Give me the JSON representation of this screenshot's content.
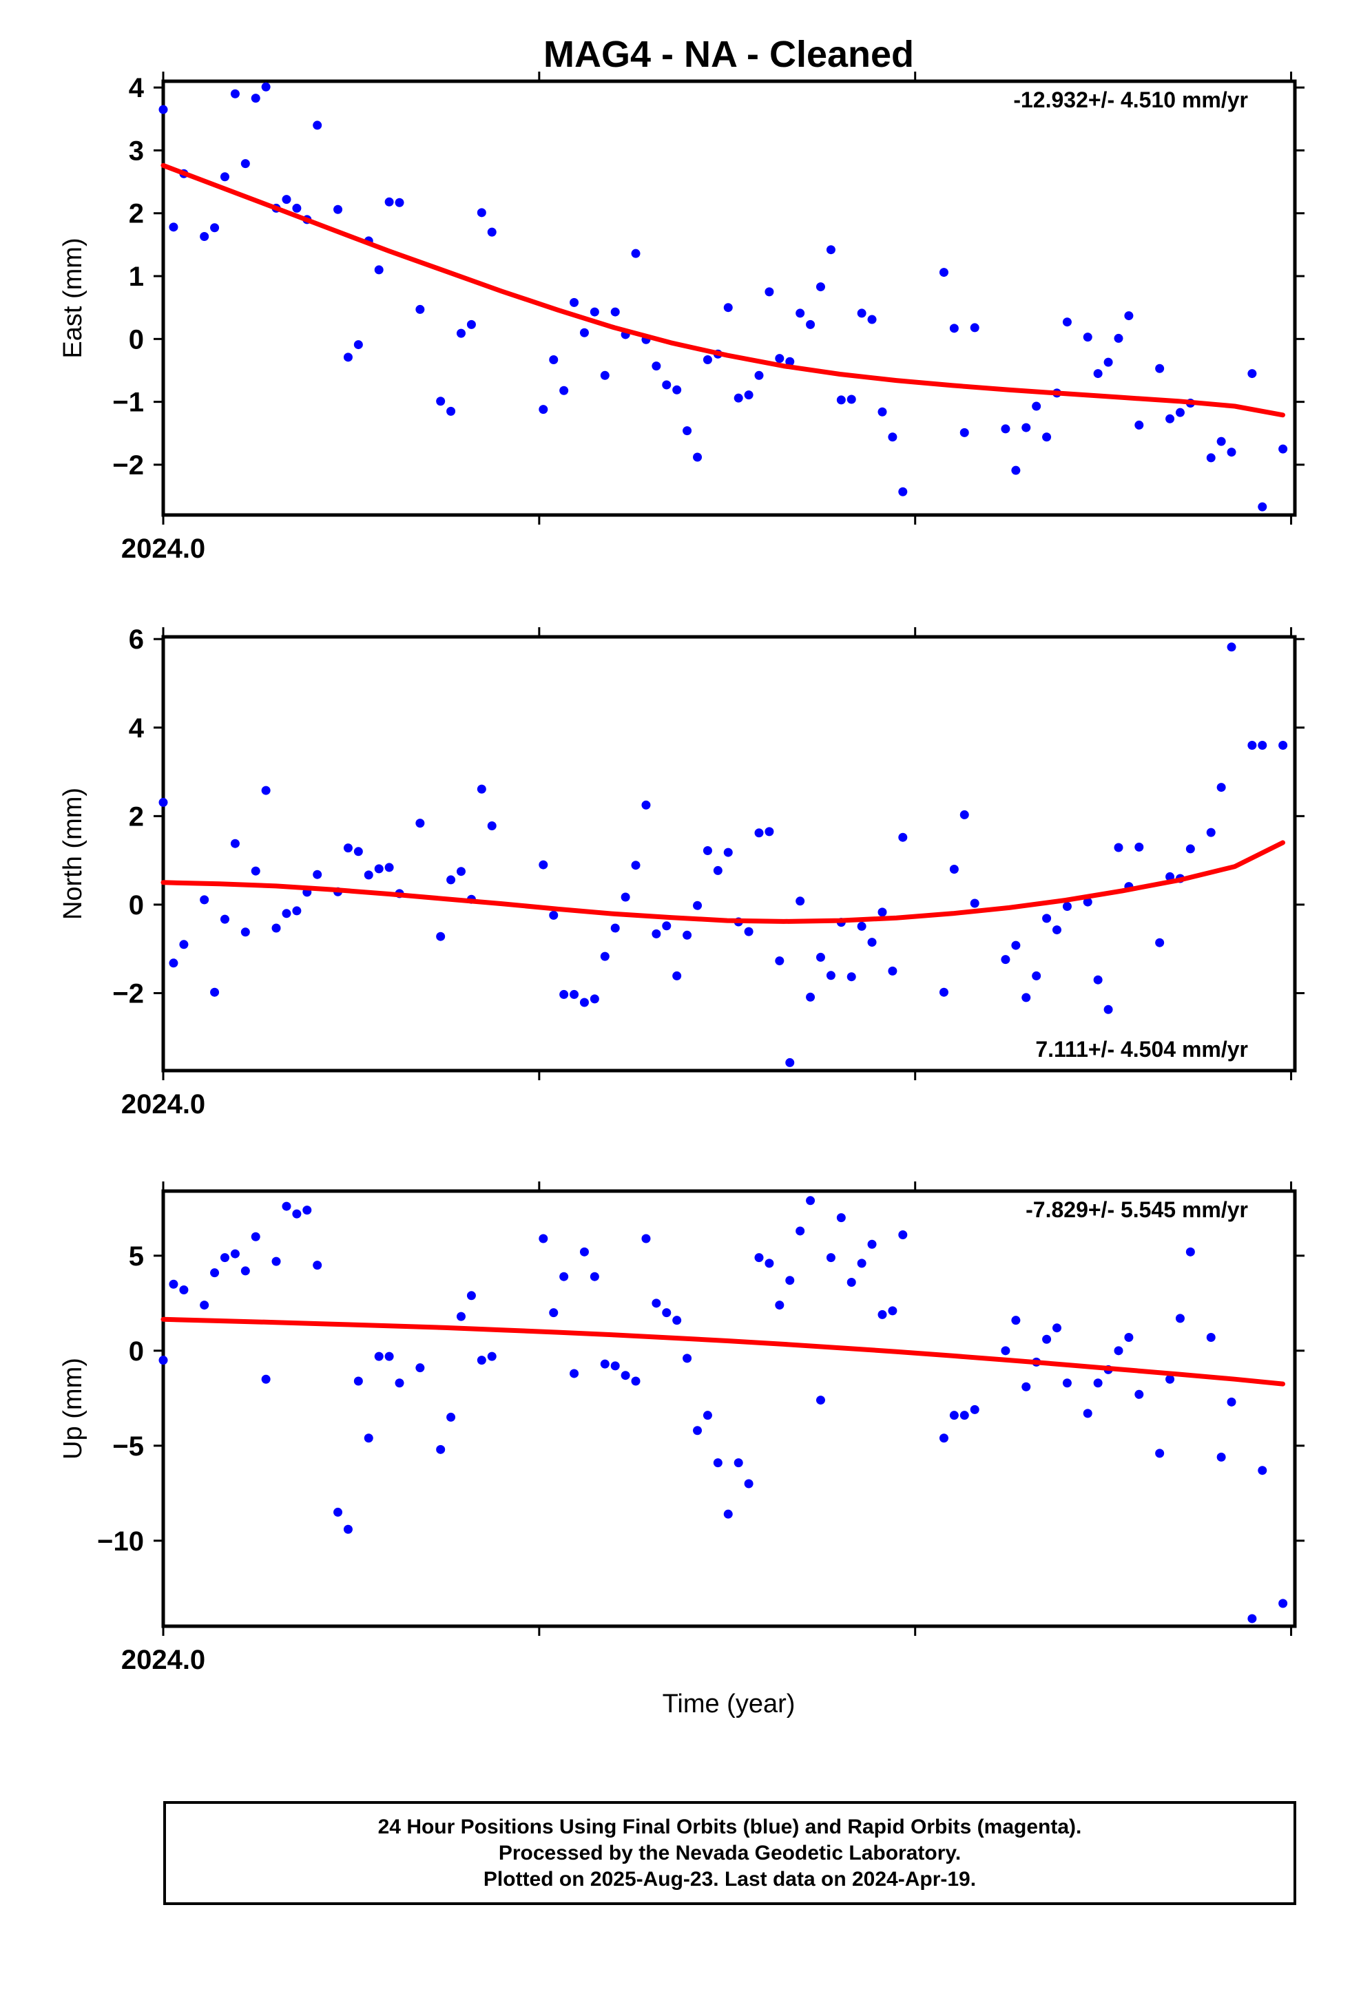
{
  "title": "MAG4  - NA - Cleaned",
  "x_label": "Time (year)",
  "footer": {
    "lines": [
      "24 Hour Positions Using Final Orbits (blue) and Rapid Orbits (magenta).",
      "Processed by the Nevada Geodetic Laboratory.",
      "Plotted on 2025-Aug-23. Last data on 2024-Apr-19."
    ]
  },
  "colors": {
    "points": "#0000ff",
    "trend": "#ff0000",
    "frame": "#000000"
  },
  "chart_data": [
    {
      "type": "scatter",
      "ylabel": "East (mm)",
      "rate_label": "-12.932+/- 4.510 mm/yr",
      "rate_position": "top-right",
      "xlim": [
        2024.0,
        2024.301
      ],
      "ylim": [
        -2.8,
        4.1
      ],
      "yticks": [
        -2,
        -1,
        0,
        1,
        2,
        3,
        4
      ],
      "xtick_labels": [
        {
          "value": 2024.0,
          "label": "2024.0"
        }
      ],
      "x": [
        2024.0,
        2024.00274,
        2024.00548,
        2024.01093,
        2024.01366,
        2024.01639,
        2024.01913,
        2024.02186,
        2024.02459,
        2024.02732,
        2024.03005,
        2024.03279,
        2024.03552,
        2024.03825,
        2024.04098,
        2024.04645,
        2024.04918,
        2024.05191,
        2024.05464,
        2024.05738,
        2024.06011,
        2024.06284,
        2024.06831,
        2024.07377,
        2024.0765,
        2024.07923,
        2024.08197,
        2024.0847,
        2024.08743,
        2024.10109,
        2024.10383,
        2024.10656,
        2024.10929,
        2024.11202,
        2024.11475,
        2024.11749,
        2024.12022,
        2024.12295,
        2024.12568,
        2024.12842,
        2024.13115,
        2024.13388,
        2024.13661,
        2024.13934,
        2024.14208,
        2024.14481,
        2024.14754,
        2024.15027,
        2024.15301,
        2024.15574,
        2024.15847,
        2024.1612,
        2024.16393,
        2024.16667,
        2024.1694,
        2024.17213,
        2024.17486,
        2024.1776,
        2024.18033,
        2024.18306,
        2024.18579,
        2024.18852,
        2024.19126,
        2024.19399,
        2024.19672,
        2024.20765,
        2024.21038,
        2024.21311,
        2024.21585,
        2024.22404,
        2024.22678,
        2024.22951,
        2024.23224,
        2024.23497,
        2024.2377,
        2024.24044,
        2024.2459,
        2024.24863,
        2024.25137,
        2024.2541,
        2024.25683,
        2024.25956,
        2024.26503,
        2024.26776,
        2024.27049,
        2024.27322,
        2024.27869,
        2024.28142,
        2024.28415,
        2024.28962,
        2024.29235,
        2024.29782
      ],
      "y": [
        3.65,
        1.78,
        2.63,
        1.63,
        1.77,
        2.58,
        3.9,
        2.79,
        3.83,
        4.01,
        2.08,
        2.22,
        2.08,
        1.9,
        3.4,
        2.06,
        -0.29,
        -0.09,
        1.56,
        1.1,
        2.18,
        2.17,
        0.47,
        -0.99,
        -1.15,
        0.09,
        0.23,
        2.01,
        1.7,
        -1.12,
        -0.33,
        -0.82,
        0.58,
        0.1,
        0.43,
        -0.58,
        0.43,
        0.07,
        1.36,
        -0.01,
        -0.43,
        -0.73,
        -0.81,
        -1.46,
        -1.88,
        -0.33,
        -0.24,
        0.5,
        -0.94,
        -0.89,
        -0.58,
        0.75,
        -0.31,
        -0.36,
        0.41,
        0.23,
        0.83,
        1.42,
        -0.97,
        -0.96,
        0.41,
        0.31,
        -1.16,
        -1.56,
        -2.43,
        1.06,
        0.17,
        -1.49,
        0.18,
        -1.43,
        -2.09,
        -1.41,
        -1.07,
        -1.56,
        -0.86,
        0.27,
        0.03,
        -0.55,
        -0.37,
        0.01,
        0.37,
        -1.37,
        -0.47,
        -1.27,
        -1.17,
        -1.02,
        -1.89,
        -1.63,
        -1.8,
        -0.55,
        -2.67,
        -1.75
      ],
      "trend": {
        "x": [
          2024.0,
          2024.015,
          2024.03,
          2024.045,
          2024.06,
          2024.075,
          2024.09,
          2024.105,
          2024.12,
          2024.135,
          2024.15,
          2024.165,
          2024.18,
          2024.195,
          2024.21,
          2024.225,
          2024.24,
          2024.255,
          2024.27,
          2024.285,
          2024.2978
        ],
        "y": [
          2.76,
          2.42,
          2.08,
          1.74,
          1.4,
          1.08,
          0.76,
          0.46,
          0.18,
          -0.06,
          -0.26,
          -0.43,
          -0.56,
          -0.66,
          -0.74,
          -0.81,
          -0.87,
          -0.93,
          -0.99,
          -1.07,
          -1.21
        ]
      }
    },
    {
      "type": "scatter",
      "ylabel": "North (mm)",
      "rate_label": "7.111+/- 4.504 mm/yr",
      "rate_position": "bottom-right",
      "xlim": [
        2024.0,
        2024.301
      ],
      "ylim": [
        -3.75,
        6.05
      ],
      "yticks": [
        -2,
        0,
        2,
        4,
        6
      ],
      "xtick_labels": [
        {
          "value": 2024.0,
          "label": "2024.0"
        }
      ],
      "x": [
        2024.0,
        2024.00274,
        2024.00548,
        2024.01093,
        2024.01366,
        2024.01639,
        2024.01913,
        2024.02186,
        2024.02459,
        2024.02732,
        2024.03005,
        2024.03279,
        2024.03552,
        2024.03825,
        2024.04098,
        2024.04645,
        2024.04918,
        2024.05191,
        2024.05464,
        2024.05738,
        2024.06011,
        2024.06284,
        2024.06831,
        2024.07377,
        2024.0765,
        2024.07923,
        2024.08197,
        2024.0847,
        2024.08743,
        2024.10109,
        2024.10383,
        2024.10656,
        2024.10929,
        2024.11202,
        2024.11475,
        2024.11749,
        2024.12022,
        2024.12295,
        2024.12568,
        2024.12842,
        2024.13115,
        2024.13388,
        2024.13661,
        2024.13934,
        2024.14208,
        2024.14481,
        2024.14754,
        2024.15027,
        2024.15301,
        2024.15574,
        2024.15847,
        2024.1612,
        2024.16393,
        2024.16667,
        2024.1694,
        2024.17213,
        2024.17486,
        2024.1776,
        2024.18033,
        2024.18306,
        2024.18579,
        2024.18852,
        2024.19126,
        2024.19399,
        2024.19672,
        2024.20765,
        2024.21038,
        2024.21311,
        2024.21585,
        2024.22404,
        2024.22678,
        2024.22951,
        2024.23224,
        2024.23497,
        2024.2377,
        2024.24044,
        2024.2459,
        2024.24863,
        2024.25137,
        2024.2541,
        2024.25683,
        2024.25956,
        2024.26503,
        2024.26776,
        2024.27049,
        2024.27322,
        2024.27869,
        2024.28142,
        2024.28415,
        2024.28962,
        2024.29235,
        2024.29782
      ],
      "y": [
        2.31,
        -1.32,
        -0.9,
        0.11,
        -1.98,
        -0.33,
        1.38,
        -0.62,
        0.76,
        2.58,
        -0.53,
        -0.2,
        -0.14,
        0.28,
        0.68,
        0.29,
        1.28,
        1.2,
        0.67,
        0.81,
        0.84,
        0.25,
        1.84,
        -0.72,
        0.56,
        0.75,
        0.12,
        2.61,
        1.78,
        0.9,
        -0.24,
        -2.03,
        -2.03,
        -2.21,
        -2.13,
        -1.17,
        -0.53,
        0.17,
        0.89,
        2.25,
        -0.66,
        -0.48,
        -1.61,
        -0.69,
        -0.02,
        1.22,
        0.77,
        1.18,
        -0.39,
        -0.61,
        1.62,
        1.65,
        -1.27,
        -3.57,
        0.08,
        -2.09,
        -1.19,
        -1.6,
        -0.4,
        -1.63,
        -0.49,
        -0.85,
        -0.17,
        -1.5,
        1.52,
        -1.98,
        0.8,
        2.03,
        0.03,
        -1.24,
        -0.92,
        -2.1,
        -1.61,
        -0.31,
        -0.57,
        -0.04,
        0.06,
        -1.7,
        -2.37,
        1.29,
        0.41,
        1.3,
        -0.86,
        0.63,
        0.59,
        1.26,
        1.63,
        2.65,
        5.82,
        3.6,
        3.6,
        3.6
      ],
      "trend": {
        "x": [
          2024.0,
          2024.015,
          2024.03,
          2024.045,
          2024.06,
          2024.075,
          2024.09,
          2024.105,
          2024.12,
          2024.135,
          2024.15,
          2024.165,
          2024.18,
          2024.195,
          2024.21,
          2024.225,
          2024.24,
          2024.255,
          2024.27,
          2024.285,
          2024.2978
        ],
        "y": [
          0.5,
          0.47,
          0.42,
          0.34,
          0.24,
          0.13,
          0.02,
          -0.1,
          -0.21,
          -0.29,
          -0.36,
          -0.38,
          -0.36,
          -0.3,
          -0.2,
          -0.07,
          0.1,
          0.31,
          0.55,
          0.86,
          1.4
        ]
      }
    },
    {
      "type": "scatter",
      "ylabel": "Up (mm)",
      "rate_label": "-7.829+/- 5.545 mm/yr",
      "rate_position": "top-right",
      "xlim": [
        2024.0,
        2024.301
      ],
      "ylim": [
        -14.5,
        8.4
      ],
      "yticks": [
        -10,
        -5,
        0,
        5
      ],
      "xtick_labels": [
        {
          "value": 2024.0,
          "label": "2024.0"
        }
      ],
      "x": [
        2024.0,
        2024.00274,
        2024.00548,
        2024.01093,
        2024.01366,
        2024.01639,
        2024.01913,
        2024.02186,
        2024.02459,
        2024.02732,
        2024.03005,
        2024.03279,
        2024.03552,
        2024.03825,
        2024.04098,
        2024.04645,
        2024.04918,
        2024.05191,
        2024.05464,
        2024.05738,
        2024.06011,
        2024.06284,
        2024.06831,
        2024.07377,
        2024.0765,
        2024.07923,
        2024.08197,
        2024.0847,
        2024.08743,
        2024.10109,
        2024.10383,
        2024.10656,
        2024.10929,
        2024.11202,
        2024.11475,
        2024.11749,
        2024.12022,
        2024.12295,
        2024.12568,
        2024.12842,
        2024.13115,
        2024.13388,
        2024.13661,
        2024.13934,
        2024.14208,
        2024.14481,
        2024.14754,
        2024.15027,
        2024.15301,
        2024.15574,
        2024.15847,
        2024.1612,
        2024.16393,
        2024.16667,
        2024.1694,
        2024.17213,
        2024.17486,
        2024.1776,
        2024.18033,
        2024.18306,
        2024.18579,
        2024.18852,
        2024.19126,
        2024.19399,
        2024.19672,
        2024.20765,
        2024.21038,
        2024.21311,
        2024.21585,
        2024.22404,
        2024.22678,
        2024.22951,
        2024.23224,
        2024.23497,
        2024.2377,
        2024.24044,
        2024.2459,
        2024.24863,
        2024.25137,
        2024.2541,
        2024.25683,
        2024.25956,
        2024.26503,
        2024.26776,
        2024.27049,
        2024.27322,
        2024.27869,
        2024.28142,
        2024.28415,
        2024.28962,
        2024.29235,
        2024.29782
      ],
      "y": [
        -0.5,
        3.5,
        3.2,
        2.4,
        4.1,
        4.9,
        5.1,
        4.2,
        6.0,
        -1.5,
        4.7,
        7.6,
        7.2,
        7.4,
        4.5,
        -8.5,
        -9.4,
        -1.6,
        -4.6,
        -0.3,
        -0.3,
        -1.7,
        -0.9,
        -5.2,
        -3.5,
        1.8,
        2.9,
        -0.5,
        -0.3,
        5.9,
        2.0,
        3.9,
        -1.2,
        5.2,
        3.9,
        -0.7,
        -0.8,
        -1.3,
        -1.6,
        5.9,
        2.5,
        2.0,
        1.6,
        -0.4,
        -4.2,
        -3.4,
        -5.9,
        -8.6,
        -5.9,
        -7.0,
        4.9,
        4.6,
        2.4,
        3.7,
        6.3,
        7.9,
        -2.6,
        4.9,
        7.0,
        3.6,
        4.6,
        5.6,
        1.9,
        2.1,
        6.1,
        -4.6,
        -3.4,
        -3.4,
        -3.1,
        0.0,
        1.6,
        -1.9,
        -0.6,
        0.6,
        1.2,
        -1.7,
        -3.3,
        -1.7,
        -1.0,
        0.0,
        0.7,
        -2.3,
        -5.4,
        -1.5,
        1.7,
        5.2,
        0.7,
        -5.6,
        -2.7,
        -14.1,
        -6.3,
        -13.3
      ],
      "trend": {
        "x": [
          2024.0,
          2024.015,
          2024.03,
          2024.045,
          2024.06,
          2024.075,
          2024.09,
          2024.105,
          2024.12,
          2024.135,
          2024.15,
          2024.165,
          2024.18,
          2024.195,
          2024.21,
          2024.225,
          2024.24,
          2024.255,
          2024.27,
          2024.285,
          2024.2978
        ],
        "y": [
          1.65,
          1.57,
          1.49,
          1.4,
          1.31,
          1.21,
          1.09,
          0.97,
          0.83,
          0.68,
          0.52,
          0.34,
          0.15,
          -0.05,
          -0.27,
          -0.5,
          -0.74,
          -0.99,
          -1.24,
          -1.5,
          -1.75
        ]
      }
    }
  ]
}
